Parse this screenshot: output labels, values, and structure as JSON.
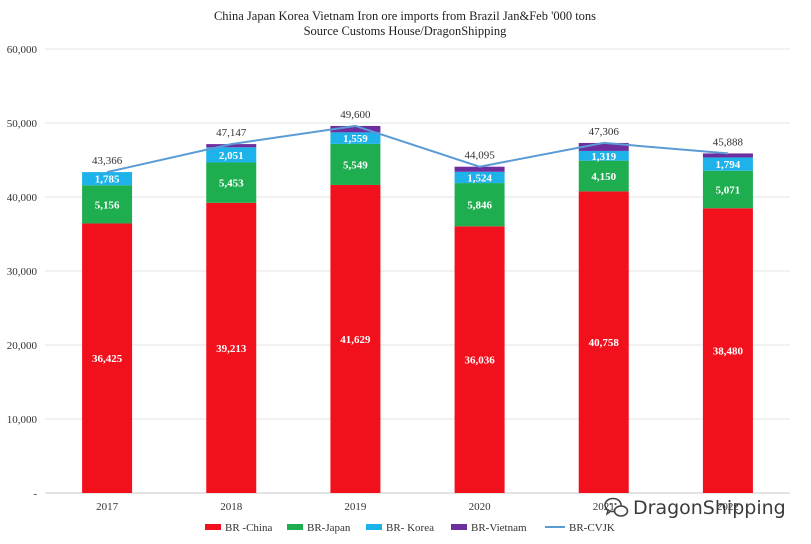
{
  "chart_data": {
    "type": "bar",
    "stacked": true,
    "title": "China Japan Korea Vietnam Iron ore imports from Brazil Jan&Feb '000 tons",
    "subtitle": "Source Customs House/DragonShipping",
    "categories": [
      "2017",
      "2018",
      "2019",
      "2020",
      "2021",
      "2022"
    ],
    "ylim": [
      0,
      60000
    ],
    "yticks": [
      "-",
      "10,000",
      "20,000",
      "30,000",
      "40,000",
      "50,000",
      "60,000"
    ],
    "grid": true,
    "legend_position": "bottom",
    "series": [
      {
        "name": "BR -China",
        "color": "#f2101d",
        "values": [
          36425,
          39213,
          41629,
          36036,
          40758,
          38480
        ],
        "labels": [
          "36,425",
          "39,213",
          "41,629",
          "36,036",
          "40,758",
          "38,480"
        ]
      },
      {
        "name": "BR-Japan",
        "color": "#1fae4f",
        "values": [
          5156,
          5453,
          5549,
          5846,
          4150,
          5071
        ],
        "labels": [
          "5,156",
          "5,453",
          "5,549",
          "5,846",
          "4,150",
          "5,071"
        ]
      },
      {
        "name": "BR- Korea",
        "color": "#1eb2ea",
        "values": [
          1785,
          2051,
          1559,
          1524,
          1319,
          1794
        ],
        "labels": [
          "1,785",
          "2,051",
          "1,559",
          "1,524",
          "1,319",
          "1,794"
        ]
      },
      {
        "name": "BR-Vietnam",
        "color": "#6f2e9f",
        "values": [
          0,
          430,
          863,
          689,
          1079,
          543
        ]
      }
    ],
    "line": {
      "name": "BR-CVJK",
      "color": "#5b9bd5",
      "values": [
        43366,
        47147,
        49600,
        44095,
        47306,
        45888
      ],
      "labels": [
        "43,366",
        "47,147",
        "49,600",
        "44,095",
        "47,306",
        "45,888"
      ]
    }
  },
  "watermark": {
    "text": "DragonShipping",
    "icon": "wechat-icon"
  }
}
